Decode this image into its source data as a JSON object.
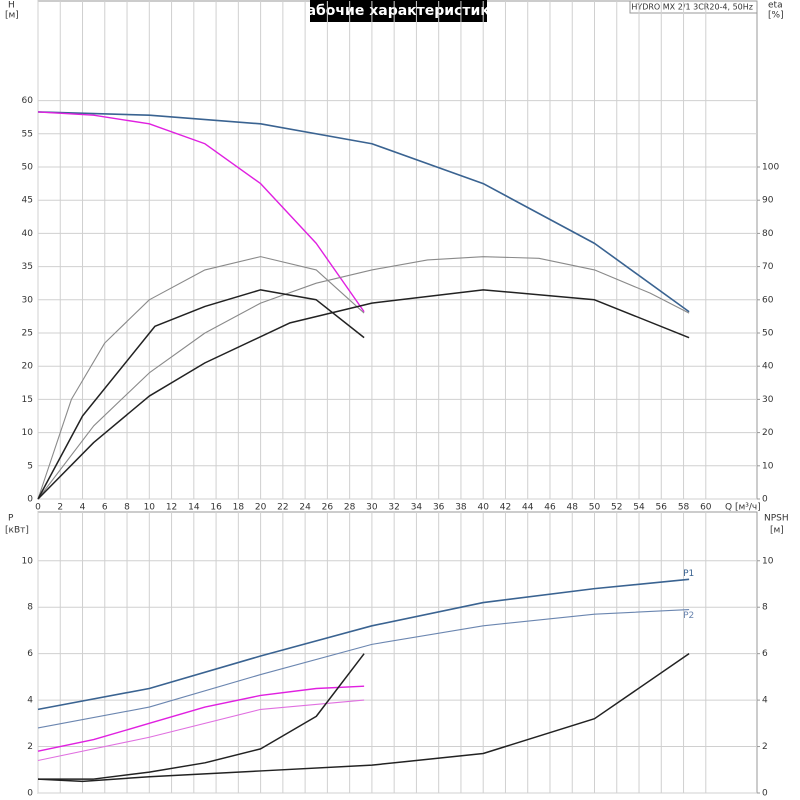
{
  "chart_data": [
    {
      "type": "line",
      "title": "Рабочие характеристики",
      "subtitle": "HYDRO MX 2/1 3CR20-4, 50Hz",
      "y_label": "H",
      "y_unit": "[м]",
      "y2_label": "eta",
      "y2_unit": "[%]",
      "x_label": "Q [м³/ч]",
      "xlim": [
        0,
        64.6
      ],
      "xticks": [
        0,
        2,
        4,
        6,
        8,
        10,
        12,
        14,
        16,
        18,
        20,
        22,
        24,
        26,
        28,
        30,
        32,
        34,
        36,
        38,
        40,
        42,
        44,
        46,
        48,
        50,
        52,
        54,
        56,
        58,
        60
      ],
      "ylim": [
        0,
        75
      ],
      "yticks": [
        0,
        5,
        10,
        15,
        20,
        25,
        30,
        35,
        40,
        45,
        50,
        55,
        60
      ],
      "y2lim": [
        0,
        150
      ],
      "y2ticks": [
        0,
        10,
        20,
        30,
        40,
        50,
        60,
        70,
        80,
        90,
        100
      ],
      "grid": true,
      "series": [
        {
          "color": "#3a6391",
          "width": 1.6,
          "x": [
            0,
            10,
            20,
            30,
            40,
            50,
            58.5
          ],
          "values": [
            58.3,
            57.8,
            56.5,
            53.5,
            47.5,
            38.5,
            28.2
          ]
        },
        {
          "color": "#e020e0",
          "width": 1.4,
          "x": [
            0,
            5,
            10,
            15,
            20,
            25,
            29.3
          ],
          "values": [
            58.3,
            57.8,
            56.5,
            53.5,
            47.5,
            38.5,
            28.2
          ]
        },
        {
          "color": "#8a8a8a",
          "width": 1.1,
          "axis": "y2",
          "x": [
            0,
            5,
            10,
            15,
            20,
            25,
            30,
            35,
            40,
            45,
            50,
            55,
            58.5
          ],
          "values": [
            0,
            22,
            38,
            50,
            59,
            65,
            69,
            72,
            73,
            72.5,
            69,
            62,
            56
          ]
        },
        {
          "color": "#8a8a8a",
          "width": 1.1,
          "axis": "y2",
          "x": [
            0,
            3,
            6,
            10,
            15,
            20,
            25,
            29.3
          ],
          "values": [
            0,
            30,
            47,
            60,
            69,
            73,
            69,
            56
          ]
        },
        {
          "color": "#222222",
          "width": 1.5,
          "axis": "y2",
          "x": [
            0,
            5,
            10,
            15,
            22.6,
            30,
            40,
            50,
            58.5
          ],
          "values": [
            0,
            17,
            31,
            41,
            53,
            59,
            63,
            60,
            48.6
          ]
        },
        {
          "color": "#222222",
          "width": 1.5,
          "axis": "y2",
          "x": [
            0,
            4,
            10.5,
            15,
            20,
            25,
            29.3
          ],
          "values": [
            0,
            25,
            52,
            58,
            63,
            60,
            48.6
          ]
        }
      ]
    },
    {
      "type": "line",
      "y_label": "P",
      "y_unit": "[кВт]",
      "y2_label": "NPSH",
      "y2_unit": "[м]",
      "xlim": [
        0,
        64.6
      ],
      "ylim": [
        0,
        12.1
      ],
      "yticks": [
        0,
        2,
        4,
        6,
        8,
        10
      ],
      "y2lim": [
        0,
        12.1
      ],
      "y2ticks": [
        0,
        2,
        4,
        6,
        8,
        10
      ],
      "grid": true,
      "series": [
        {
          "name": "P1",
          "color": "#3a6391",
          "width": 1.6,
          "x": [
            0,
            10,
            20,
            30,
            40,
            50,
            58.5
          ],
          "values": [
            3.6,
            4.5,
            5.9,
            7.2,
            8.2,
            8.8,
            9.2
          ]
        },
        {
          "name": "P2",
          "color": "#6b86b0",
          "width": 1.1,
          "x": [
            0,
            10,
            20,
            30,
            40,
            50,
            58.5
          ],
          "values": [
            2.8,
            3.7,
            5.1,
            6.4,
            7.2,
            7.7,
            7.9
          ]
        },
        {
          "color": "#e020e0",
          "width": 1.4,
          "x": [
            0,
            5,
            10,
            15,
            20,
            25,
            29.3
          ],
          "values": [
            1.8,
            2.3,
            3.0,
            3.7,
            4.2,
            4.5,
            4.6
          ]
        },
        {
          "color": "#e070e0",
          "width": 1.1,
          "x": [
            0,
            10,
            20,
            29.3
          ],
          "values": [
            1.4,
            2.4,
            3.6,
            4.0
          ]
        },
        {
          "color": "#222222",
          "width": 1.5,
          "axis": "y2",
          "x": [
            0,
            5,
            10,
            15,
            20,
            25,
            29.3
          ],
          "values": [
            0.6,
            0.6,
            0.9,
            1.3,
            1.9,
            3.3,
            6.0
          ]
        },
        {
          "color": "#222222",
          "width": 1.5,
          "axis": "y2",
          "x": [
            0,
            4,
            10,
            20,
            30,
            40,
            50,
            58.5
          ],
          "values": [
            0.6,
            0.5,
            0.7,
            0.95,
            1.2,
            1.7,
            3.2,
            6.0
          ]
        }
      ]
    }
  ]
}
